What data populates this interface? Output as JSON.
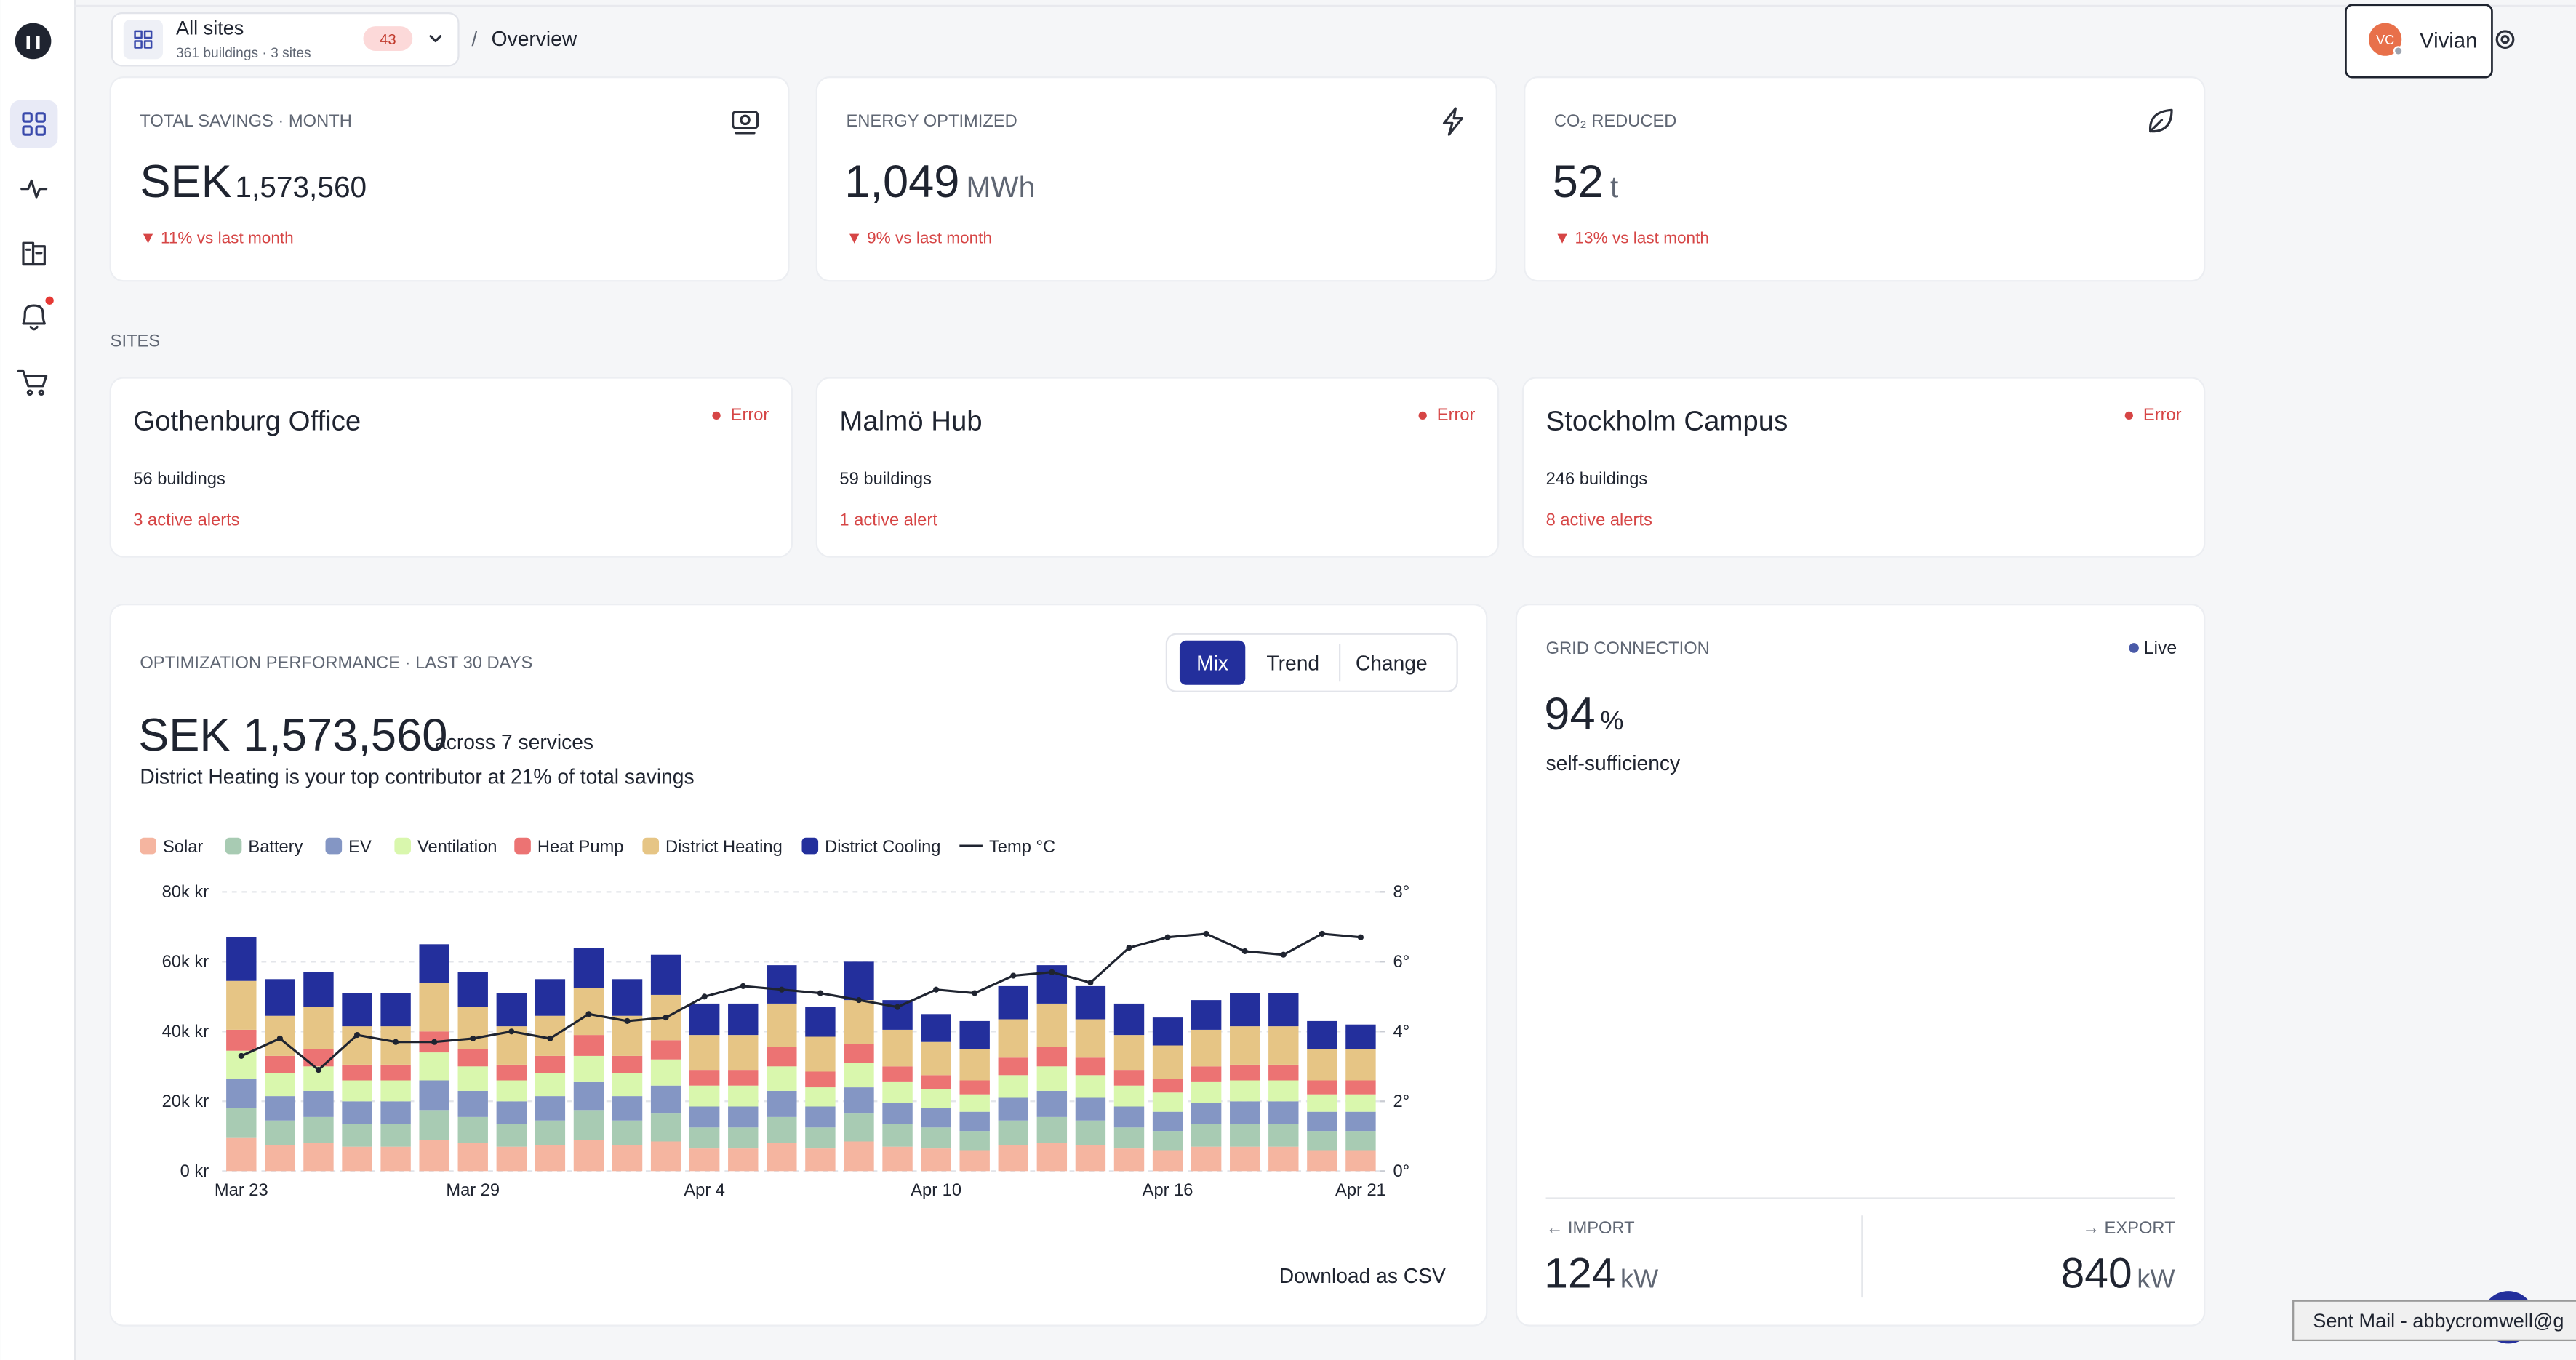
{
  "nav": {
    "site_selector": {
      "title": "All sites",
      "subtitle": "361 buildings · 3 sites",
      "badge": "43"
    },
    "breadcrumb_separator": "/",
    "breadcrumb": "Overview",
    "user": {
      "initials": "VC",
      "name": "Vivian"
    }
  },
  "kpis": [
    {
      "label": "TOTAL SAVINGS · MONTH",
      "prefix": "SEK",
      "value": "1,573,560",
      "delta": "▼ 11% vs last month"
    },
    {
      "label": "ENERGY OPTIMIZED",
      "value": "1,049",
      "unit": "MWh",
      "delta": "▼ 9% vs last month"
    },
    {
      "label": "CO₂ REDUCED",
      "value": "52",
      "unit": "t",
      "delta": "▼ 13% vs last month"
    }
  ],
  "sites_heading": "SITES",
  "sites": [
    {
      "name": "Gothenburg Office",
      "status": "Error",
      "buildings": "56 buildings",
      "alerts": "3 active alerts"
    },
    {
      "name": "Malmö Hub",
      "status": "Error",
      "buildings": "59 buildings",
      "alerts": "1 active alert"
    },
    {
      "name": "Stockholm Campus",
      "status": "Error",
      "buildings": "246 buildings",
      "alerts": "8 active alerts"
    }
  ],
  "performance": {
    "title": "OPTIMIZATION PERFORMANCE · LAST 30 DAYS",
    "tabs": [
      "Mix",
      "Trend",
      "Change"
    ],
    "total": "SEK 1,573,560",
    "total_note": "· across 7 services",
    "summary": "District Heating is your top contributor at 21% of total savings",
    "download": "Download as CSV"
  },
  "grid": {
    "title": "GRID CONNECTION",
    "status": "Live",
    "value": "94",
    "unit": "%",
    "caption": "self-sufficiency",
    "import_label": "← IMPORT",
    "import_value": "124",
    "import_unit": "kW",
    "export_label": "→ EXPORT",
    "export_value": "840",
    "export_unit": "kW"
  },
  "toast": "Sent Mail - abbycromwell@g",
  "chart_data": {
    "type": "bar",
    "stacked": true,
    "legend": "top-left",
    "grid": true,
    "categories": [
      "Mar 23",
      null,
      null,
      null,
      null,
      null,
      "Mar 29",
      null,
      null,
      null,
      null,
      null,
      "Apr 4",
      null,
      null,
      null,
      null,
      null,
      "Apr 10",
      null,
      null,
      null,
      null,
      null,
      "Apr 16",
      null,
      null,
      null,
      null,
      "Apr 21"
    ],
    "ylim": [
      0,
      80000
    ],
    "yticks": [
      {
        "value": 0,
        "label": "0 kr"
      },
      {
        "value": 20000,
        "label": "20k kr"
      },
      {
        "value": 40000,
        "label": "40k kr"
      },
      {
        "value": 60000,
        "label": "60k kr"
      },
      {
        "value": 80000,
        "label": "80k kr"
      }
    ],
    "y2lim": [
      0,
      8
    ],
    "y2ticks": [
      {
        "value": 0,
        "label": "0°"
      },
      {
        "value": 2,
        "label": "2°"
      },
      {
        "value": 4,
        "label": "4°"
      },
      {
        "value": 6,
        "label": "6°"
      },
      {
        "value": 8,
        "label": "8°"
      }
    ],
    "series": [
      {
        "name": "Solar",
        "color": "#f5b5a0",
        "values": [
          9500,
          7500,
          8000,
          7000,
          7000,
          9000,
          8000,
          7000,
          7500,
          9000,
          7500,
          8500,
          6500,
          6500,
          8000,
          6500,
          8500,
          7000,
          6500,
          6000,
          7500,
          8000,
          7500,
          6500,
          6000,
          7000,
          7000,
          7000,
          6000,
          6000
        ]
      },
      {
        "name": "Battery",
        "color": "#a8cbb3",
        "values": [
          8500,
          7000,
          7500,
          6500,
          6500,
          8500,
          7500,
          6500,
          7000,
          8500,
          7000,
          8000,
          6000,
          6000,
          7500,
          6000,
          8000,
          6500,
          6000,
          5500,
          7000,
          7500,
          7000,
          6000,
          5500,
          6500,
          6500,
          6500,
          5500,
          5500
        ]
      },
      {
        "name": "EV",
        "color": "#8496c4",
        "values": [
          8500,
          7000,
          7500,
          6500,
          6500,
          8500,
          7500,
          6500,
          7000,
          8000,
          7000,
          8000,
          6000,
          6000,
          7500,
          6000,
          7500,
          6000,
          5500,
          5500,
          6500,
          7500,
          6500,
          6000,
          5500,
          6000,
          6500,
          6500,
          5500,
          5500
        ]
      },
      {
        "name": "Ventilation",
        "color": "#d9f7ad",
        "values": [
          8000,
          6500,
          7000,
          6000,
          6000,
          8000,
          7000,
          6000,
          6500,
          7500,
          6500,
          7500,
          6000,
          6000,
          7000,
          5500,
          7000,
          6000,
          5500,
          5000,
          6500,
          7000,
          6500,
          6000,
          5500,
          6000,
          6000,
          6000,
          5000,
          5000
        ]
      },
      {
        "name": "Heat Pump",
        "color": "#ec7373",
        "values": [
          6000,
          5000,
          5000,
          4500,
          4500,
          6000,
          5000,
          4500,
          5000,
          6000,
          5000,
          5500,
          4500,
          4500,
          5500,
          4500,
          5500,
          4500,
          4000,
          4000,
          5000,
          5500,
          5000,
          4500,
          4000,
          4500,
          4500,
          4500,
          4000,
          4000
        ]
      },
      {
        "name": "District Heating",
        "color": "#e6c585",
        "values": [
          14000,
          11500,
          12000,
          11000,
          11000,
          14000,
          12000,
          11000,
          11500,
          13500,
          11500,
          13000,
          10000,
          10000,
          12500,
          10000,
          12500,
          10500,
          9500,
          9000,
          11000,
          12500,
          11000,
          10000,
          9500,
          10500,
          11000,
          11000,
          9000,
          9000
        ]
      },
      {
        "name": "District Cooling",
        "color": "#232f9c",
        "values": [
          12500,
          10500,
          10000,
          9500,
          9500,
          11000,
          10000,
          9500,
          10500,
          11500,
          10500,
          11500,
          9000,
          9000,
          11000,
          8500,
          11000,
          8500,
          8000,
          8000,
          9500,
          11000,
          9500,
          9000,
          8000,
          8500,
          9500,
          9500,
          8000,
          7000
        ]
      },
      {
        "name": "Temp °C",
        "color": "#1f2430",
        "axis": "y2",
        "type": "line",
        "values": [
          3.3,
          3.8,
          2.9,
          3.9,
          3.7,
          3.7,
          3.8,
          4,
          3.8,
          4.5,
          4.3,
          4.4,
          5,
          5.3,
          5.2,
          5.1,
          4.9,
          4.7,
          5.2,
          5.1,
          5.6,
          5.7,
          5.4,
          6.4,
          6.7,
          6.8,
          6.3,
          6.2,
          6.8,
          6.7
        ]
      }
    ]
  }
}
